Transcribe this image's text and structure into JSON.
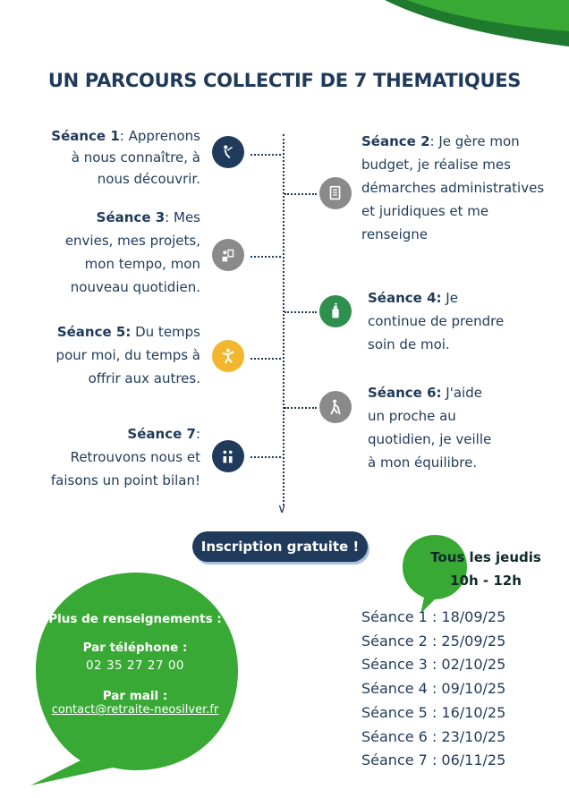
{
  "title": "UN PARCOURS COLLECTIF DE 7 THEMATIQUES",
  "sessions": [
    {
      "label": "Séance 1",
      "sep": ": ",
      "lines": [
        "Apprenons",
        "à nous connaître, à",
        "nous découvrir."
      ],
      "icon": "ribbon-person-icon",
      "color": "#1f3a5a"
    },
    {
      "label": "Séance 2",
      "sep": ": ",
      "lines": [
        "Je gère mon",
        "budget, je réalise mes",
        "démarches administratives",
        "et juridiques et me",
        "renseigne"
      ],
      "icon": "document-list-icon",
      "color": "#8a8a8a"
    },
    {
      "label": "Séance 3",
      "sep": ": ",
      "lines": [
        "Mes",
        "envies, mes projets,",
        "mon tempo, mon",
        "nouveau quotidien."
      ],
      "icon": "person-board-icon",
      "color": "#8a8a8a"
    },
    {
      "label": "Séance 4:",
      "sep": " ",
      "lines": [
        "Je",
        "continue de prendre",
        "soin de moi."
      ],
      "icon": "lotion-bottle-icon",
      "color": "#2f8f4e"
    },
    {
      "label": "Séance 5:",
      "sep": " ",
      "lines": [
        "Du temps",
        "pour moi, du temps à",
        "offrir aux autres."
      ],
      "icon": "dancing-person-icon",
      "color": "#f2b62f"
    },
    {
      "label": "Séance 6:",
      "sep": " ",
      "lines": [
        "J'aide",
        "un proche au",
        "quotidien, je veille",
        "à mon équilibre."
      ],
      "icon": "walking-cane-icon",
      "color": "#8a8a8a"
    },
    {
      "label": "Séance 7",
      "sep": ":",
      "lines": [
        "",
        "Retrouvons nous et",
        "faisons un point bilan!"
      ],
      "icon": "two-people-icon",
      "color": "#1f3a5a"
    }
  ],
  "inscription": "Inscription gratuite !",
  "schedule": {
    "day": "Tous les jeudis",
    "time": "10h - 12h"
  },
  "contact": {
    "heading": "Plus de renseignements :",
    "phone_label": "Par téléphone :",
    "phone": "02 35 27 27 00",
    "mail_label": "Par mail :",
    "mail": "contact@retraite-neosilver.fr"
  },
  "dates": [
    "Séance 1 : 18/09/25",
    "Séance 2 : 25/09/25",
    "Séance 3 : 02/10/25",
    "Séance 4 : 09/10/25",
    "Séance 5 : 16/10/25",
    "Séance 6 : 23/10/25",
    "Séance 7 : 06/11/25"
  ],
  "colors": {
    "navy": "#1f3a5a",
    "green": "#39a935",
    "dark_green": "#1f7a2e",
    "grey": "#8a8a8a",
    "yellow": "#f2b62f"
  }
}
